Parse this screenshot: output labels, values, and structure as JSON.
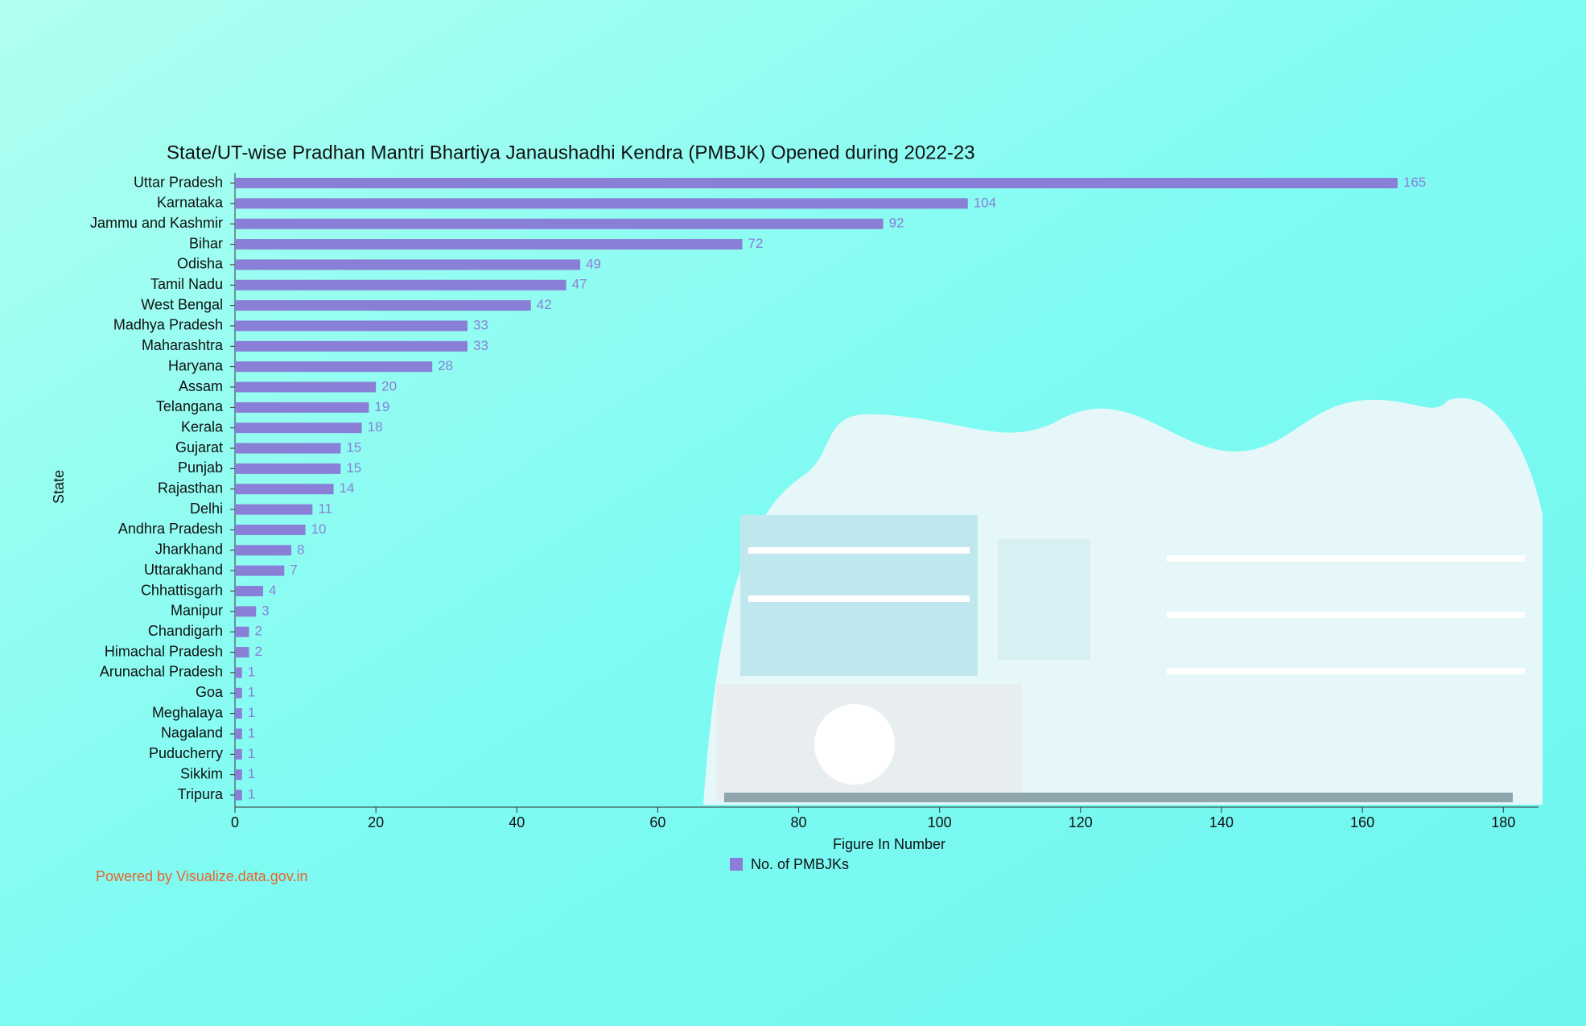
{
  "chart_data": {
    "type": "bar",
    "orientation": "horizontal",
    "title": "State/UT-wise Pradhan Mantri Bhartiya Janaushadhi Kendra (PMBJK) Opened during 2022-23",
    "x_label": "Figure In Number",
    "y_label": "State",
    "categories": [
      "Uttar Pradesh",
      "Karnataka",
      "Jammu and Kashmir",
      "Bihar",
      "Odisha",
      "Tamil Nadu",
      "West Bengal",
      "Madhya Pradesh",
      "Maharashtra",
      "Haryana",
      "Assam",
      "Telangana",
      "Kerala",
      "Gujarat",
      "Punjab",
      "Rajasthan",
      "Delhi",
      "Andhra Pradesh",
      "Jharkhand",
      "Uttarakhand",
      "Chhattisgarh",
      "Manipur",
      "Chandigarh",
      "Himachal Pradesh",
      "Arunachal Pradesh",
      "Goa",
      "Meghalaya",
      "Nagaland",
      "Puducherry",
      "Sikkim",
      "Tripura"
    ],
    "series": [
      {
        "name": "No. of PMBJKs",
        "color": "#8a7fd6",
        "values": [
          165,
          104,
          92,
          72,
          49,
          47,
          42,
          33,
          33,
          28,
          20,
          19,
          18,
          15,
          15,
          14,
          11,
          10,
          8,
          7,
          4,
          3,
          2,
          2,
          1,
          1,
          1,
          1,
          1,
          1,
          1
        ]
      }
    ],
    "xlim": [
      0,
      185
    ],
    "xticks": [
      0,
      20,
      40,
      60,
      80,
      100,
      120,
      140,
      160,
      180
    ],
    "legend": "bottom",
    "credit": "Powered by Visualize.data.gov.in"
  }
}
